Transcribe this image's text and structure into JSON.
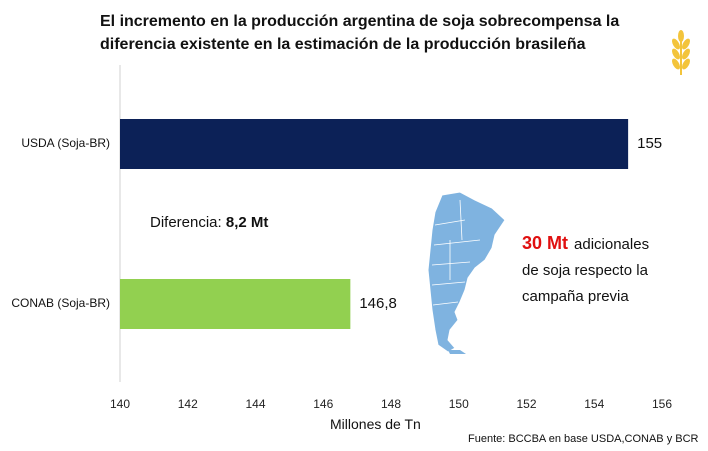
{
  "title": {
    "line1": "El incremento en  la producción argentina de soja sobrecompensa la",
    "line2": "diferencia existente en la estimación de la producción brasileña"
  },
  "difference": {
    "label": "Diferencia: ",
    "value": "8,2 Mt"
  },
  "note": {
    "highlight": "30 Mt",
    "line1_rest": "adicionales",
    "line2": "de soja respecto la",
    "line3": "campaña previa"
  },
  "source": "Fuente: BCCBA en base USDA,CONAB y BCR",
  "chart_data": {
    "type": "bar",
    "orientation": "horizontal",
    "categories": [
      "USDA (Soja-BR)",
      "CONAB (Soja-BR)"
    ],
    "values": [
      155,
      146.8
    ],
    "value_labels": [
      "155",
      "146,8"
    ],
    "colors": [
      "#0c2157",
      "#92d050"
    ],
    "xlabel": "Millones de Tn",
    "xlim": [
      140,
      156
    ],
    "xticks": [
      "140",
      "142",
      "144",
      "146",
      "148",
      "150",
      "152",
      "154",
      "156"
    ],
    "grid": false
  }
}
